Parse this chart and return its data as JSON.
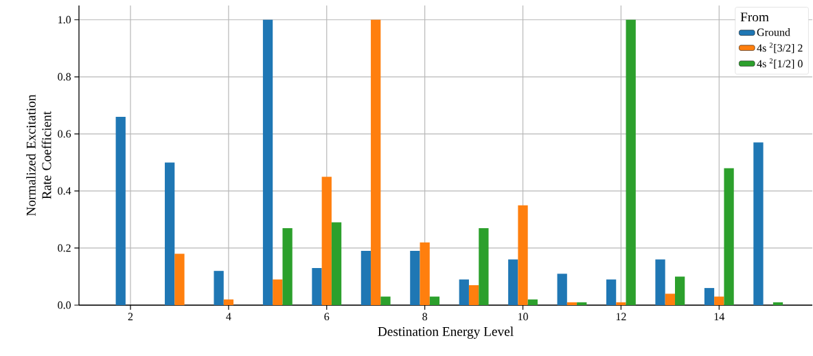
{
  "chart_data": {
    "type": "bar",
    "xlabel": "Destination Energy Level",
    "ylabel": "Normalized Excitation Rate Coefficient",
    "legend_title": "From",
    "x": [
      2,
      3,
      4,
      5,
      6,
      7,
      8,
      9,
      10,
      11,
      12,
      13,
      14,
      15
    ],
    "series": [
      {
        "name": "Ground",
        "color": "#1f77b4",
        "values": [
          0.66,
          0.5,
          0.12,
          1.0,
          0.13,
          0.19,
          0.19,
          0.09,
          0.16,
          0.11,
          0.09,
          0.16,
          0.06,
          0.57
        ]
      },
      {
        "name": "4s $^{2}$[3/2] 2",
        "color": "#ff7f0e",
        "values": [
          0,
          0.18,
          0.02,
          0.09,
          0.45,
          1.0,
          0.22,
          0.07,
          0.35,
          0.01,
          0.01,
          0.04,
          0.03,
          0.0
        ]
      },
      {
        "name": "4s $^{2}$[1/2] 0",
        "color": "#2ca02c",
        "values": [
          0,
          0,
          0,
          0.27,
          0.29,
          0.03,
          0.03,
          0.27,
          0.02,
          0.01,
          1.0,
          0.1,
          0.48,
          0.01
        ]
      }
    ],
    "xlim": [
      0.95,
      15.9
    ],
    "ylim": [
      0,
      1.05
    ],
    "xticks": [
      2,
      4,
      6,
      8,
      10,
      12,
      14
    ],
    "yticks": [
      {
        "value": 0,
        "label": "0.0"
      },
      {
        "value": 0.2,
        "label": "0.2"
      },
      {
        "value": 0.4,
        "label": "0.4"
      },
      {
        "value": 0.6,
        "label": "0.6"
      },
      {
        "value": 0.8,
        "label": "0.8"
      },
      {
        "value": 1.0,
        "label": "1.0"
      }
    ],
    "grid": true,
    "legend": "top right"
  }
}
